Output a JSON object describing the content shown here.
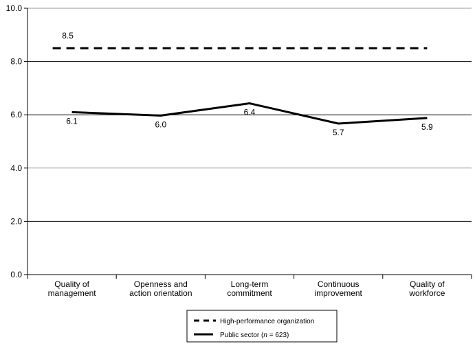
{
  "chart_data": {
    "type": "line",
    "categories": [
      [
        "Quality of",
        "management"
      ],
      [
        "Openness and",
        "action orientation"
      ],
      [
        "Long-term",
        "commitment"
      ],
      [
        "Continuous",
        "improvement"
      ],
      [
        "Quality of",
        "workforce"
      ]
    ],
    "ylim": [
      0,
      10
    ],
    "yticks": [
      "0.0",
      "2.0",
      "4.0",
      "6.0",
      "8.0",
      "10.0"
    ],
    "grid": true,
    "legend_position": "bottom",
    "series": [
      {
        "name": "High-performance organization",
        "style": "dashed",
        "values": [
          8.5,
          8.5,
          8.5,
          8.5,
          8.5
        ],
        "labels": [
          "8.5",
          "",
          "",
          "",
          ""
        ]
      },
      {
        "name_prefix": "Public sector (",
        "name_n": "n",
        "name_suffix": " = 623)",
        "style": "solid",
        "values": [
          6.1,
          5.97,
          6.43,
          5.67,
          5.88
        ],
        "labels": [
          "6.1",
          "6.0",
          "6.4",
          "5.7",
          "5.9"
        ]
      }
    ]
  }
}
